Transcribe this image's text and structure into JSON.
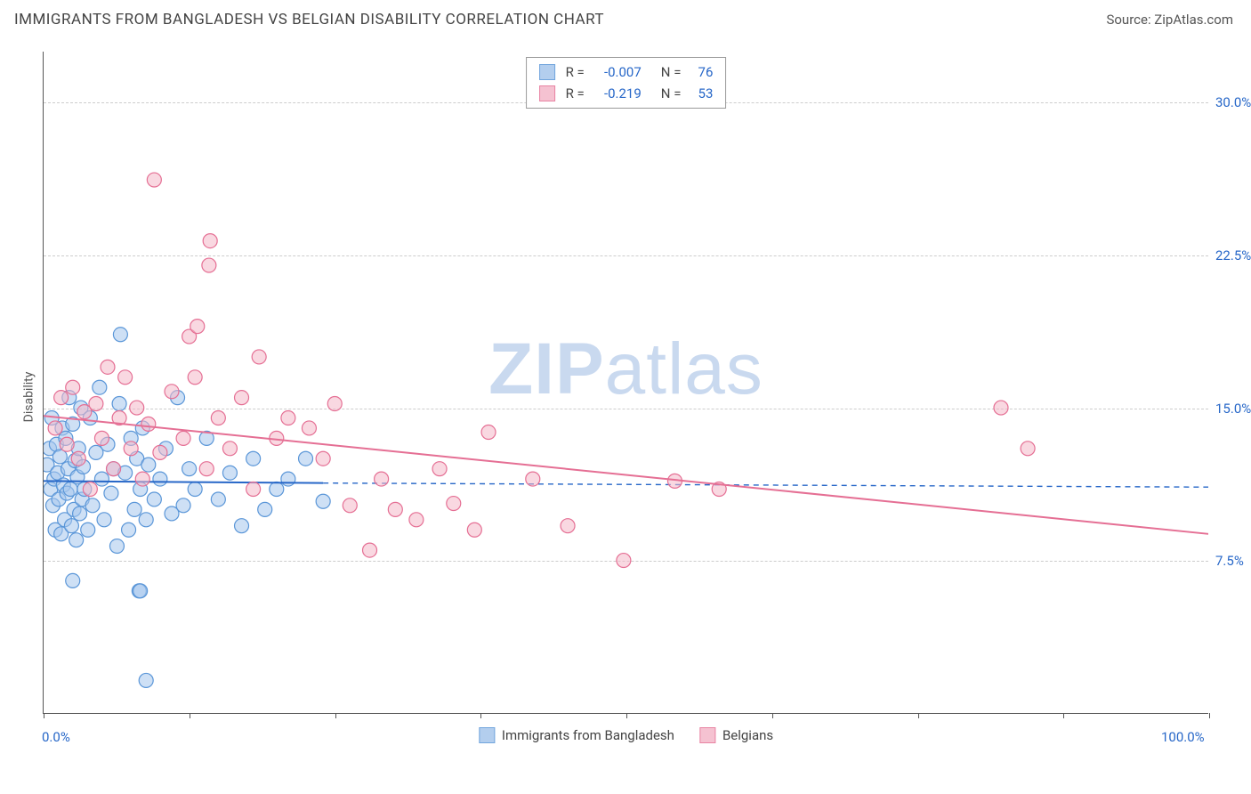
{
  "header": {
    "title": "IMMIGRANTS FROM BANGLADESH VS BELGIAN DISABILITY CORRELATION CHART",
    "source": "Source: ZipAtlas.com"
  },
  "watermark": {
    "a": "ZIP",
    "b": "atlas"
  },
  "chart": {
    "type": "scatter",
    "y_axis_label": "Disability",
    "xlim": [
      0,
      100
    ],
    "ylim": [
      0,
      32.5
    ],
    "x_ticks_pct": [
      0,
      12.5,
      25,
      37.5,
      50,
      62.5,
      75,
      87.5,
      100
    ],
    "x_tick_labels": {
      "0": "0.0%",
      "100": "100.0%"
    },
    "y_gridlines": [
      7.5,
      15.0,
      22.5,
      30.0
    ],
    "y_tick_labels": [
      "7.5%",
      "15.0%",
      "22.5%",
      "30.0%"
    ],
    "grid_color": "#cccccc",
    "axis_color": "#555555",
    "series": [
      {
        "name": "Immigrants from Bangladesh",
        "fill": "#a6c6ec",
        "stroke": "#5a96d8",
        "fill_opacity": 0.55,
        "marker_r": 8,
        "R": "-0.007",
        "N": "76",
        "regression": {
          "x1": 0,
          "y1": 11.4,
          "x2": 24,
          "y2": 11.3,
          "dash_x2": 100,
          "dash_y2": 11.1,
          "color": "#2767c8",
          "width": 2
        },
        "points": [
          [
            0.3,
            12.2
          ],
          [
            0.5,
            13.0
          ],
          [
            0.6,
            11.0
          ],
          [
            0.7,
            14.5
          ],
          [
            0.8,
            10.2
          ],
          [
            0.9,
            11.5
          ],
          [
            1.0,
            9.0
          ],
          [
            1.1,
            13.2
          ],
          [
            1.2,
            11.8
          ],
          [
            1.3,
            10.5
          ],
          [
            1.4,
            12.6
          ],
          [
            1.5,
            8.8
          ],
          [
            1.6,
            14.0
          ],
          [
            1.7,
            11.2
          ],
          [
            1.8,
            9.5
          ],
          [
            1.9,
            13.5
          ],
          [
            2.0,
            10.8
          ],
          [
            2.1,
            12.0
          ],
          [
            2.2,
            15.5
          ],
          [
            2.3,
            11.0
          ],
          [
            2.4,
            9.2
          ],
          [
            2.5,
            14.2
          ],
          [
            2.6,
            10.0
          ],
          [
            2.7,
            12.4
          ],
          [
            2.8,
            8.5
          ],
          [
            2.9,
            11.6
          ],
          [
            3.0,
            13.0
          ],
          [
            3.1,
            9.8
          ],
          [
            3.2,
            15.0
          ],
          [
            3.3,
            10.5
          ],
          [
            3.4,
            12.1
          ],
          [
            3.5,
            11.0
          ],
          [
            3.8,
            9.0
          ],
          [
            4.0,
            14.5
          ],
          [
            4.2,
            10.2
          ],
          [
            4.5,
            12.8
          ],
          [
            4.8,
            16.0
          ],
          [
            5.0,
            11.5
          ],
          [
            5.2,
            9.5
          ],
          [
            5.5,
            13.2
          ],
          [
            5.8,
            10.8
          ],
          [
            6.0,
            12.0
          ],
          [
            6.3,
            8.2
          ],
          [
            6.5,
            15.2
          ],
          [
            6.6,
            18.6
          ],
          [
            7.0,
            11.8
          ],
          [
            7.3,
            9.0
          ],
          [
            7.5,
            13.5
          ],
          [
            7.8,
            10.0
          ],
          [
            8.0,
            12.5
          ],
          [
            8.3,
            11.0
          ],
          [
            8.5,
            14.0
          ],
          [
            8.8,
            9.5
          ],
          [
            9.0,
            12.2
          ],
          [
            9.5,
            10.5
          ],
          [
            8.2,
            6.0
          ],
          [
            8.3,
            6.0
          ],
          [
            10.0,
            11.5
          ],
          [
            10.5,
            13.0
          ],
          [
            11.0,
            9.8
          ],
          [
            11.5,
            15.5
          ],
          [
            12.0,
            10.2
          ],
          [
            12.5,
            12.0
          ],
          [
            13.0,
            11.0
          ],
          [
            14.0,
            13.5
          ],
          [
            2.5,
            6.5
          ],
          [
            15.0,
            10.5
          ],
          [
            16.0,
            11.8
          ],
          [
            17.0,
            9.2
          ],
          [
            18.0,
            12.5
          ],
          [
            8.8,
            1.6
          ],
          [
            19.0,
            10.0
          ],
          [
            20.0,
            11.0
          ],
          [
            21.0,
            11.5
          ],
          [
            22.5,
            12.5
          ],
          [
            24.0,
            10.4
          ]
        ]
      },
      {
        "name": "Belgians",
        "fill": "#f4b8c9",
        "stroke": "#e56f94",
        "fill_opacity": 0.55,
        "marker_r": 8,
        "R": "-0.219",
        "N": "53",
        "regression": {
          "x1": 0,
          "y1": 14.6,
          "x2": 100,
          "y2": 8.8,
          "color": "#e56f94",
          "width": 2
        },
        "points": [
          [
            1.0,
            14.0
          ],
          [
            1.5,
            15.5
          ],
          [
            2.0,
            13.2
          ],
          [
            2.5,
            16.0
          ],
          [
            3.0,
            12.5
          ],
          [
            3.5,
            14.8
          ],
          [
            4.0,
            11.0
          ],
          [
            4.5,
            15.2
          ],
          [
            5.0,
            13.5
          ],
          [
            5.5,
            17.0
          ],
          [
            6.0,
            12.0
          ],
          [
            6.5,
            14.5
          ],
          [
            7.0,
            16.5
          ],
          [
            7.5,
            13.0
          ],
          [
            8.0,
            15.0
          ],
          [
            9.5,
            26.2
          ],
          [
            8.5,
            11.5
          ],
          [
            9.0,
            14.2
          ],
          [
            10.0,
            12.8
          ],
          [
            11.0,
            15.8
          ],
          [
            12.0,
            13.5
          ],
          [
            12.5,
            18.5
          ],
          [
            13.2,
            19.0
          ],
          [
            13.0,
            16.5
          ],
          [
            14.2,
            22.0
          ],
          [
            14.3,
            23.2
          ],
          [
            14.0,
            12.0
          ],
          [
            15.0,
            14.5
          ],
          [
            16.0,
            13.0
          ],
          [
            17.0,
            15.5
          ],
          [
            18.0,
            11.0
          ],
          [
            18.5,
            17.5
          ],
          [
            20.0,
            13.5
          ],
          [
            21.0,
            14.5
          ],
          [
            22.8,
            14.0
          ],
          [
            24.0,
            12.5
          ],
          [
            25.0,
            15.2
          ],
          [
            26.3,
            10.2
          ],
          [
            28.0,
            8.0
          ],
          [
            29.0,
            11.5
          ],
          [
            30.2,
            10.0
          ],
          [
            32.0,
            9.5
          ],
          [
            34.0,
            12.0
          ],
          [
            35.2,
            10.3
          ],
          [
            38.2,
            13.8
          ],
          [
            37.0,
            9.0
          ],
          [
            42.0,
            11.5
          ],
          [
            45.0,
            9.2
          ],
          [
            49.8,
            7.5
          ],
          [
            54.2,
            11.4
          ],
          [
            58.0,
            11.0
          ],
          [
            82.2,
            15.0
          ],
          [
            84.5,
            13.0
          ]
        ]
      }
    ],
    "bottom_legend": [
      {
        "label": "Immigrants from Bangladesh",
        "fill": "#a6c6ec",
        "stroke": "#5a96d8"
      },
      {
        "label": "Belgians",
        "fill": "#f4b8c9",
        "stroke": "#e56f94"
      }
    ],
    "label_color": "#2767c8"
  }
}
